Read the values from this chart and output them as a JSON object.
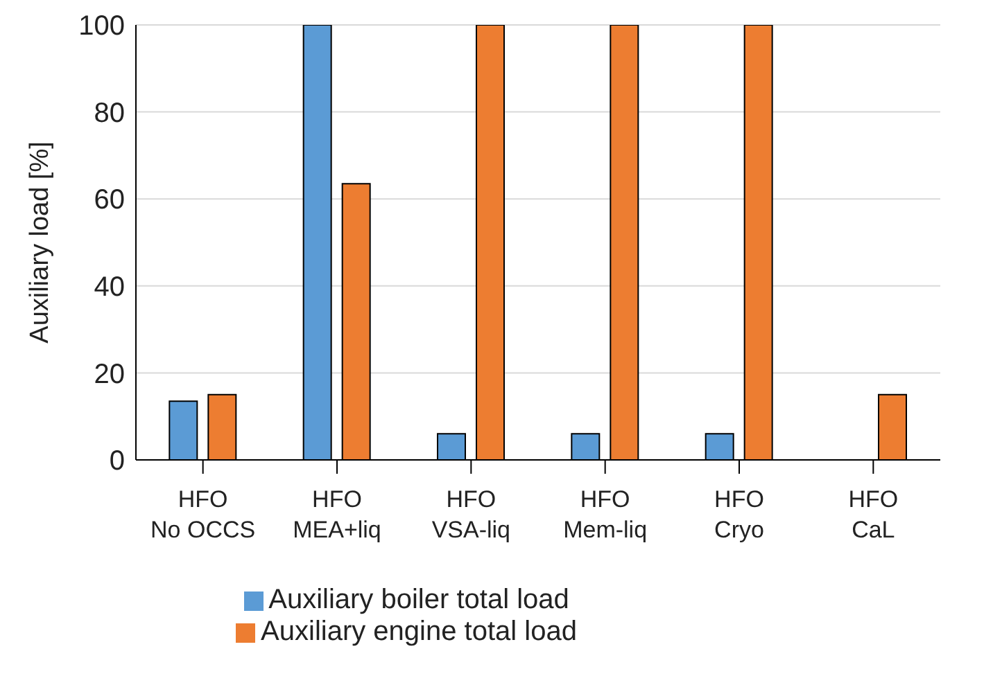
{
  "chart_data": {
    "type": "bar",
    "ylabel": "Auxiliary load [%]",
    "categories": [
      "HFO\nNo OCCS",
      "HFO\nMEA+liq",
      "HFO\nVSA-liq",
      "HFO\nMem-liq",
      "HFO\nCryo",
      "HFO\nCaL"
    ],
    "series": [
      {
        "name": "Auxiliary boiler total load",
        "color": "#5b9bd5",
        "values": [
          13.5,
          100,
          6,
          6,
          6,
          0
        ]
      },
      {
        "name": "Auxiliary engine total load",
        "color": "#ed7d31",
        "values": [
          15,
          63.5,
          100,
          100,
          100,
          15
        ]
      }
    ],
    "ylim": [
      0,
      100
    ],
    "yticks": [
      0,
      20,
      40,
      60,
      80,
      100
    ],
    "grid": "y",
    "legend": "bottom"
  }
}
